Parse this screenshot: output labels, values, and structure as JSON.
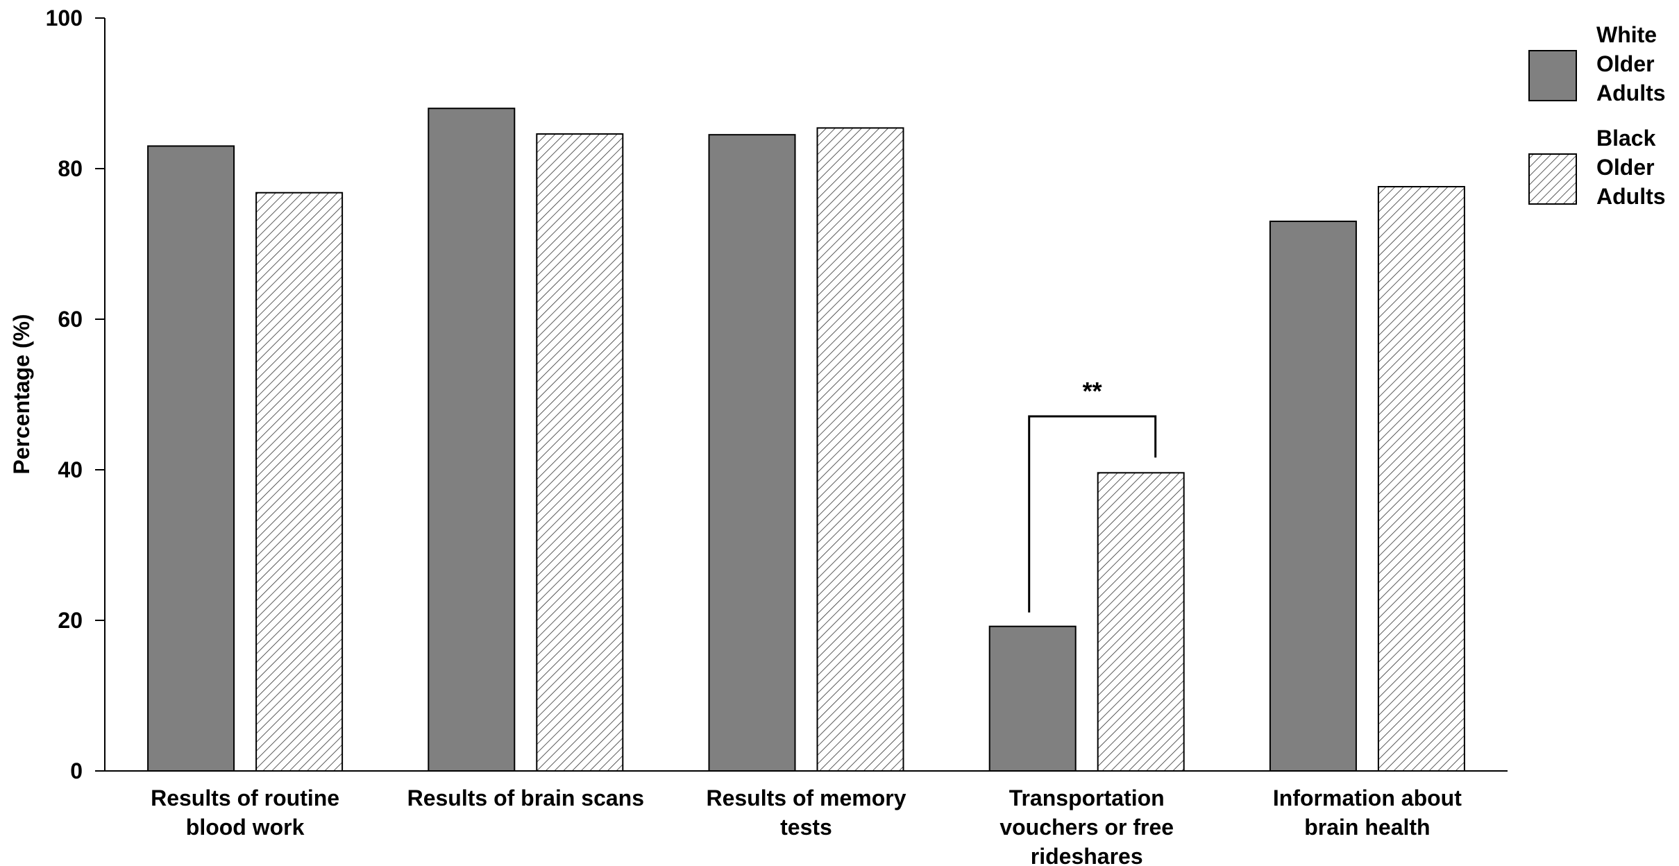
{
  "chart_data": {
    "type": "bar",
    "ylabel": "Percentage (%)",
    "ylim": [
      0,
      100
    ],
    "yticks": [
      "0",
      "20",
      "40",
      "60",
      "80",
      "100"
    ],
    "categories": [
      [
        "Results of routine",
        "blood work"
      ],
      [
        "Results of brain scans"
      ],
      [
        "Results of memory",
        "tests"
      ],
      [
        "Transportation",
        "vouchers or free",
        "rideshares"
      ],
      [
        "Information about",
        "brain health"
      ]
    ],
    "series": [
      {
        "name": [
          "White",
          "Older",
          "Adults"
        ],
        "fill": "solid",
        "color": "#808080",
        "values": [
          83.0,
          88.0,
          84.5,
          19.2,
          73.0
        ]
      },
      {
        "name": [
          "Black",
          "Older",
          "Adults"
        ],
        "fill": "hatched",
        "color": "#ffffff",
        "values": [
          76.8,
          84.6,
          85.4,
          39.6,
          77.6
        ]
      }
    ],
    "annotations": [
      {
        "text": "**",
        "category_index": 3
      }
    ],
    "grid": false,
    "legend": "top-right"
  }
}
